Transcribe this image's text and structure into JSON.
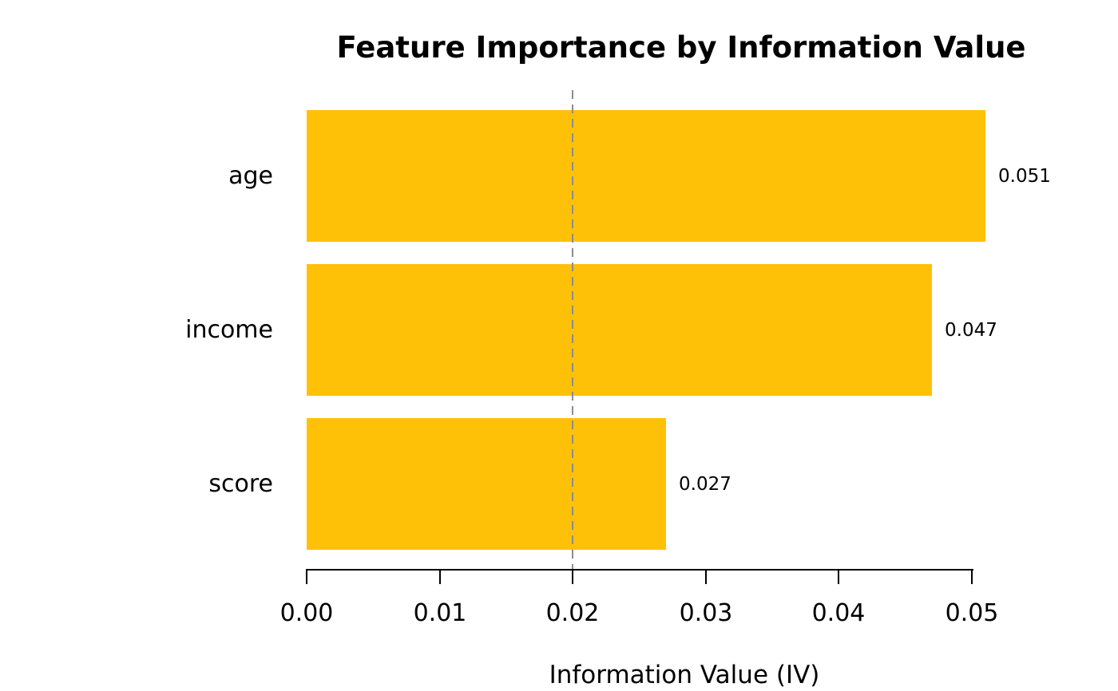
{
  "chart_data": {
    "type": "bar",
    "orientation": "horizontal",
    "title": "Feature Importance by Information Value",
    "xlabel": "Information Value (IV)",
    "ylabel": "",
    "categories": [
      "age",
      "income",
      "score"
    ],
    "values": [
      0.051,
      0.047,
      0.027
    ],
    "value_labels": [
      "0.051",
      "0.047",
      "0.027"
    ],
    "x_tick_values": [
      0,
      0.01,
      0.02,
      0.03,
      0.04,
      0.05
    ],
    "x_tick_labels": [
      "0.00",
      "0.01",
      "0.02",
      "0.03",
      "0.04",
      "0.05"
    ],
    "xlim": [
      0,
      0.0568
    ],
    "reference_line": {
      "x": 0.02,
      "style": "dashed",
      "color": "#8c8c8c"
    },
    "bar_color": "#ffc107",
    "text_color": "#000000",
    "background_color": "#ffffff",
    "grid": false,
    "legend": null
  }
}
